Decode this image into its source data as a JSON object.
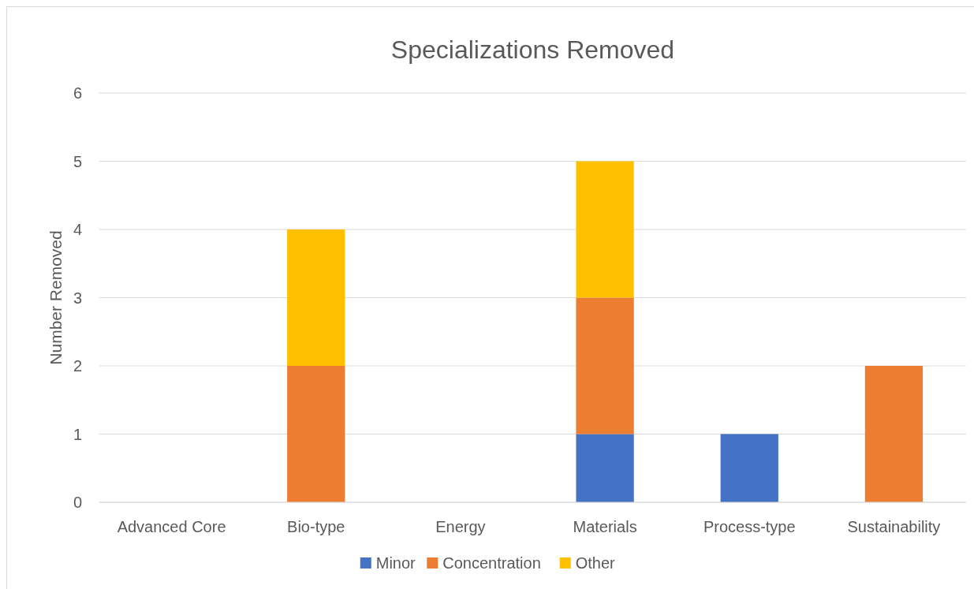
{
  "chart_data": {
    "type": "bar",
    "title": "Specializations Removed",
    "ylabel": "Number Removed",
    "categories": [
      "Advanced Core",
      "Bio-type",
      "Energy",
      "Materials",
      "Process-type",
      "Sustainability"
    ],
    "stacked": true,
    "ylim": [
      0,
      6
    ],
    "yticks": [
      0,
      1,
      2,
      3,
      4,
      5,
      6
    ],
    "grid": "y",
    "legend": "bottom",
    "series": [
      {
        "name": "Minor",
        "color": "#4472c4",
        "values": [
          0,
          0,
          0,
          1,
          1,
          0
        ]
      },
      {
        "name": "Concentration",
        "color": "#ed7d31",
        "values": [
          0,
          2,
          0,
          2,
          0,
          2
        ]
      },
      {
        "name": "Other",
        "color": "#ffc000",
        "values": [
          0,
          2,
          0,
          2,
          0,
          0
        ]
      }
    ]
  }
}
